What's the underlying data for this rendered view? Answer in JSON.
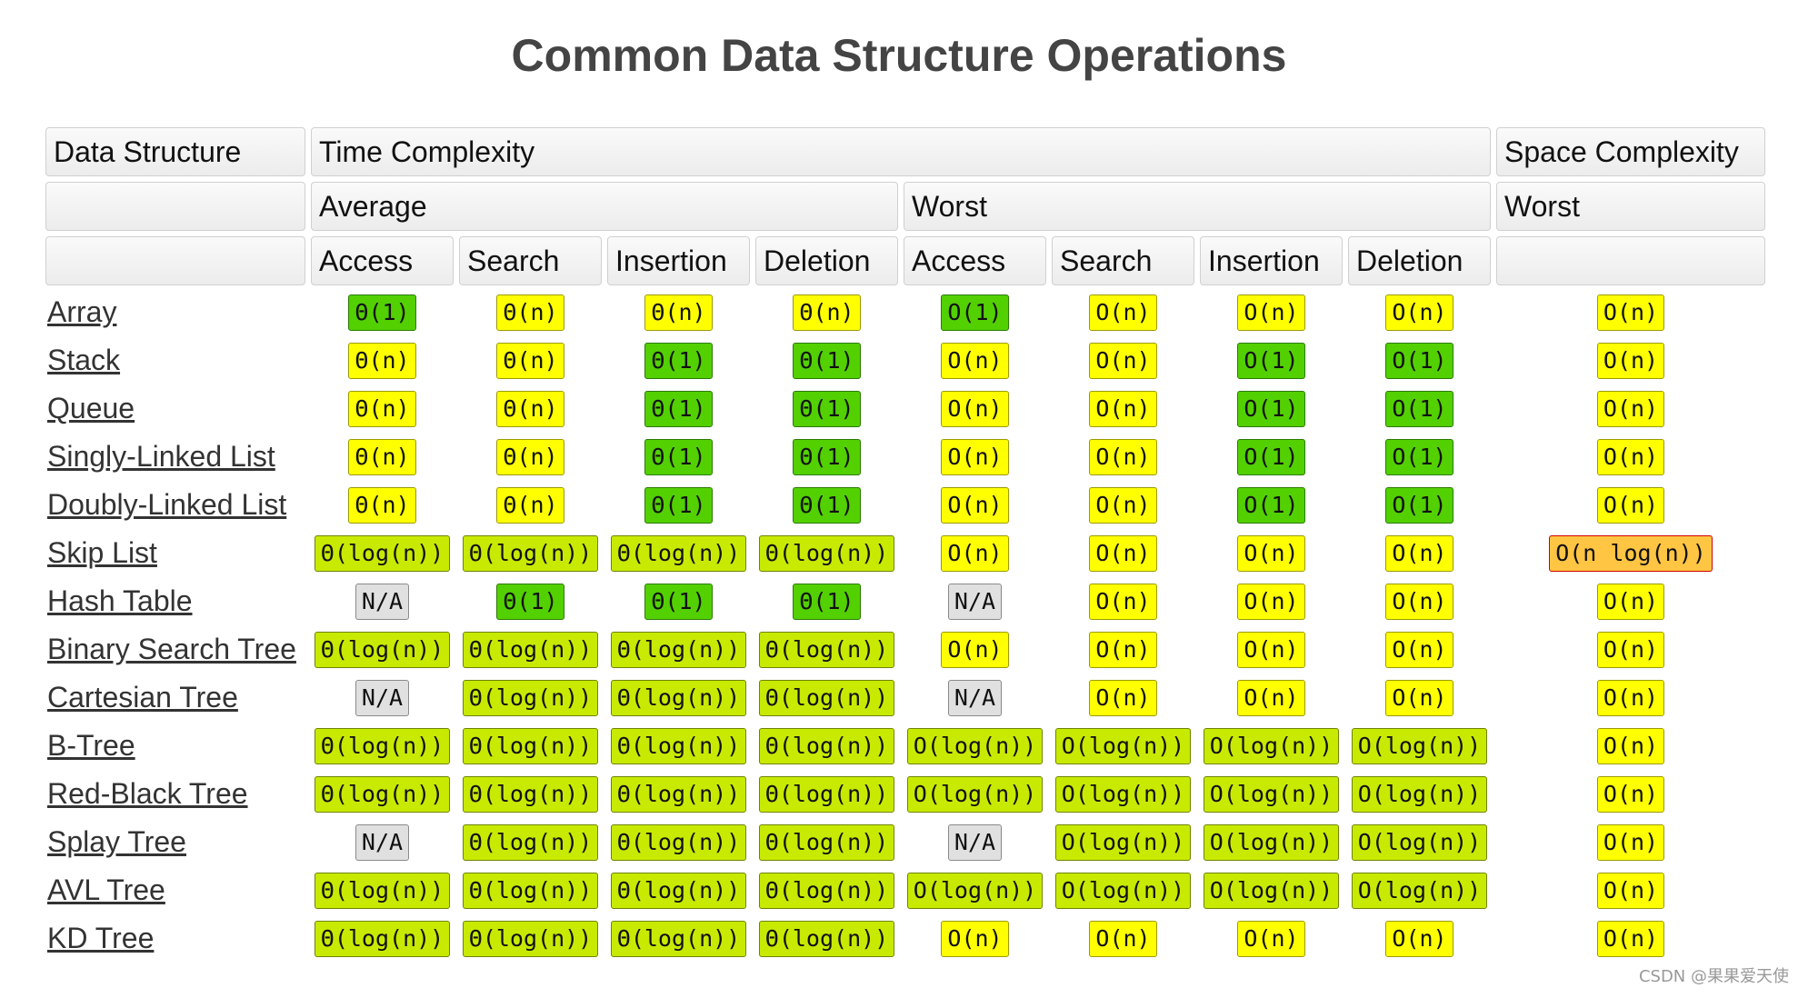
{
  "title": "Common Data Structure Operations",
  "header": {
    "col_data_structure": "Data Structure",
    "col_time_complexity": "Time Complexity",
    "col_space_complexity": "Space Complexity",
    "average": "Average",
    "worst": "Worst",
    "space_worst": "Worst",
    "ops": [
      "Access",
      "Search",
      "Insertion",
      "Deletion",
      "Access",
      "Search",
      "Insertion",
      "Deletion"
    ]
  },
  "colors": {
    "green": "#53d000",
    "yellowgreen": "#c8ea00",
    "yellow": "#ffff00",
    "orange": "#ffc543",
    "gray": "#e0e0e0"
  },
  "rows": [
    {
      "name": "Array",
      "cells": [
        {
          "v": "Θ(1)",
          "c": "green"
        },
        {
          "v": "Θ(n)",
          "c": "yellow"
        },
        {
          "v": "Θ(n)",
          "c": "yellow"
        },
        {
          "v": "Θ(n)",
          "c": "yellow"
        },
        {
          "v": "O(1)",
          "c": "green"
        },
        {
          "v": "O(n)",
          "c": "yellow"
        },
        {
          "v": "O(n)",
          "c": "yellow"
        },
        {
          "v": "O(n)",
          "c": "yellow"
        },
        {
          "v": "O(n)",
          "c": "yellow"
        }
      ]
    },
    {
      "name": "Stack",
      "cells": [
        {
          "v": "Θ(n)",
          "c": "yellow"
        },
        {
          "v": "Θ(n)",
          "c": "yellow"
        },
        {
          "v": "Θ(1)",
          "c": "green"
        },
        {
          "v": "Θ(1)",
          "c": "green"
        },
        {
          "v": "O(n)",
          "c": "yellow"
        },
        {
          "v": "O(n)",
          "c": "yellow"
        },
        {
          "v": "O(1)",
          "c": "green"
        },
        {
          "v": "O(1)",
          "c": "green"
        },
        {
          "v": "O(n)",
          "c": "yellow"
        }
      ]
    },
    {
      "name": "Queue",
      "cells": [
        {
          "v": "Θ(n)",
          "c": "yellow"
        },
        {
          "v": "Θ(n)",
          "c": "yellow"
        },
        {
          "v": "Θ(1)",
          "c": "green"
        },
        {
          "v": "Θ(1)",
          "c": "green"
        },
        {
          "v": "O(n)",
          "c": "yellow"
        },
        {
          "v": "O(n)",
          "c": "yellow"
        },
        {
          "v": "O(1)",
          "c": "green"
        },
        {
          "v": "O(1)",
          "c": "green"
        },
        {
          "v": "O(n)",
          "c": "yellow"
        }
      ]
    },
    {
      "name": "Singly-Linked List",
      "cells": [
        {
          "v": "Θ(n)",
          "c": "yellow"
        },
        {
          "v": "Θ(n)",
          "c": "yellow"
        },
        {
          "v": "Θ(1)",
          "c": "green"
        },
        {
          "v": "Θ(1)",
          "c": "green"
        },
        {
          "v": "O(n)",
          "c": "yellow"
        },
        {
          "v": "O(n)",
          "c": "yellow"
        },
        {
          "v": "O(1)",
          "c": "green"
        },
        {
          "v": "O(1)",
          "c": "green"
        },
        {
          "v": "O(n)",
          "c": "yellow"
        }
      ]
    },
    {
      "name": "Doubly-Linked List",
      "cells": [
        {
          "v": "Θ(n)",
          "c": "yellow"
        },
        {
          "v": "Θ(n)",
          "c": "yellow"
        },
        {
          "v": "Θ(1)",
          "c": "green"
        },
        {
          "v": "Θ(1)",
          "c": "green"
        },
        {
          "v": "O(n)",
          "c": "yellow"
        },
        {
          "v": "O(n)",
          "c": "yellow"
        },
        {
          "v": "O(1)",
          "c": "green"
        },
        {
          "v": "O(1)",
          "c": "green"
        },
        {
          "v": "O(n)",
          "c": "yellow"
        }
      ]
    },
    {
      "name": "Skip List",
      "cells": [
        {
          "v": "Θ(log(n))",
          "c": "yellowgreen"
        },
        {
          "v": "Θ(log(n))",
          "c": "yellowgreen"
        },
        {
          "v": "Θ(log(n))",
          "c": "yellowgreen"
        },
        {
          "v": "Θ(log(n))",
          "c": "yellowgreen"
        },
        {
          "v": "O(n)",
          "c": "yellow"
        },
        {
          "v": "O(n)",
          "c": "yellow"
        },
        {
          "v": "O(n)",
          "c": "yellow"
        },
        {
          "v": "O(n)",
          "c": "yellow"
        },
        {
          "v": "O(n log(n))",
          "c": "orange"
        }
      ]
    },
    {
      "name": "Hash Table",
      "cells": [
        {
          "v": "N/A",
          "c": "gray"
        },
        {
          "v": "Θ(1)",
          "c": "green"
        },
        {
          "v": "Θ(1)",
          "c": "green"
        },
        {
          "v": "Θ(1)",
          "c": "green"
        },
        {
          "v": "N/A",
          "c": "gray"
        },
        {
          "v": "O(n)",
          "c": "yellow"
        },
        {
          "v": "O(n)",
          "c": "yellow"
        },
        {
          "v": "O(n)",
          "c": "yellow"
        },
        {
          "v": "O(n)",
          "c": "yellow"
        }
      ]
    },
    {
      "name": "Binary Search Tree",
      "cells": [
        {
          "v": "Θ(log(n))",
          "c": "yellowgreen"
        },
        {
          "v": "Θ(log(n))",
          "c": "yellowgreen"
        },
        {
          "v": "Θ(log(n))",
          "c": "yellowgreen"
        },
        {
          "v": "Θ(log(n))",
          "c": "yellowgreen"
        },
        {
          "v": "O(n)",
          "c": "yellow"
        },
        {
          "v": "O(n)",
          "c": "yellow"
        },
        {
          "v": "O(n)",
          "c": "yellow"
        },
        {
          "v": "O(n)",
          "c": "yellow"
        },
        {
          "v": "O(n)",
          "c": "yellow"
        }
      ]
    },
    {
      "name": "Cartesian Tree",
      "cells": [
        {
          "v": "N/A",
          "c": "gray"
        },
        {
          "v": "Θ(log(n))",
          "c": "yellowgreen"
        },
        {
          "v": "Θ(log(n))",
          "c": "yellowgreen"
        },
        {
          "v": "Θ(log(n))",
          "c": "yellowgreen"
        },
        {
          "v": "N/A",
          "c": "gray"
        },
        {
          "v": "O(n)",
          "c": "yellow"
        },
        {
          "v": "O(n)",
          "c": "yellow"
        },
        {
          "v": "O(n)",
          "c": "yellow"
        },
        {
          "v": "O(n)",
          "c": "yellow"
        }
      ]
    },
    {
      "name": "B-Tree",
      "cells": [
        {
          "v": "Θ(log(n))",
          "c": "yellowgreen"
        },
        {
          "v": "Θ(log(n))",
          "c": "yellowgreen"
        },
        {
          "v": "Θ(log(n))",
          "c": "yellowgreen"
        },
        {
          "v": "Θ(log(n))",
          "c": "yellowgreen"
        },
        {
          "v": "O(log(n))",
          "c": "yellowgreen"
        },
        {
          "v": "O(log(n))",
          "c": "yellowgreen"
        },
        {
          "v": "O(log(n))",
          "c": "yellowgreen"
        },
        {
          "v": "O(log(n))",
          "c": "yellowgreen"
        },
        {
          "v": "O(n)",
          "c": "yellow"
        }
      ]
    },
    {
      "name": "Red-Black Tree",
      "cells": [
        {
          "v": "Θ(log(n))",
          "c": "yellowgreen"
        },
        {
          "v": "Θ(log(n))",
          "c": "yellowgreen"
        },
        {
          "v": "Θ(log(n))",
          "c": "yellowgreen"
        },
        {
          "v": "Θ(log(n))",
          "c": "yellowgreen"
        },
        {
          "v": "O(log(n))",
          "c": "yellowgreen"
        },
        {
          "v": "O(log(n))",
          "c": "yellowgreen"
        },
        {
          "v": "O(log(n))",
          "c": "yellowgreen"
        },
        {
          "v": "O(log(n))",
          "c": "yellowgreen"
        },
        {
          "v": "O(n)",
          "c": "yellow"
        }
      ]
    },
    {
      "name": "Splay Tree",
      "cells": [
        {
          "v": "N/A",
          "c": "gray"
        },
        {
          "v": "Θ(log(n))",
          "c": "yellowgreen"
        },
        {
          "v": "Θ(log(n))",
          "c": "yellowgreen"
        },
        {
          "v": "Θ(log(n))",
          "c": "yellowgreen"
        },
        {
          "v": "N/A",
          "c": "gray"
        },
        {
          "v": "O(log(n))",
          "c": "yellowgreen"
        },
        {
          "v": "O(log(n))",
          "c": "yellowgreen"
        },
        {
          "v": "O(log(n))",
          "c": "yellowgreen"
        },
        {
          "v": "O(n)",
          "c": "yellow"
        }
      ]
    },
    {
      "name": "AVL Tree",
      "cells": [
        {
          "v": "Θ(log(n))",
          "c": "yellowgreen"
        },
        {
          "v": "Θ(log(n))",
          "c": "yellowgreen"
        },
        {
          "v": "Θ(log(n))",
          "c": "yellowgreen"
        },
        {
          "v": "Θ(log(n))",
          "c": "yellowgreen"
        },
        {
          "v": "O(log(n))",
          "c": "yellowgreen"
        },
        {
          "v": "O(log(n))",
          "c": "yellowgreen"
        },
        {
          "v": "O(log(n))",
          "c": "yellowgreen"
        },
        {
          "v": "O(log(n))",
          "c": "yellowgreen"
        },
        {
          "v": "O(n)",
          "c": "yellow"
        }
      ]
    },
    {
      "name": "KD Tree",
      "cells": [
        {
          "v": "Θ(log(n))",
          "c": "yellowgreen"
        },
        {
          "v": "Θ(log(n))",
          "c": "yellowgreen"
        },
        {
          "v": "Θ(log(n))",
          "c": "yellowgreen"
        },
        {
          "v": "Θ(log(n))",
          "c": "yellowgreen"
        },
        {
          "v": "O(n)",
          "c": "yellow"
        },
        {
          "v": "O(n)",
          "c": "yellow"
        },
        {
          "v": "O(n)",
          "c": "yellow"
        },
        {
          "v": "O(n)",
          "c": "yellow"
        },
        {
          "v": "O(n)",
          "c": "yellow"
        }
      ]
    }
  ],
  "watermark": "CSDN @果果爱天使"
}
